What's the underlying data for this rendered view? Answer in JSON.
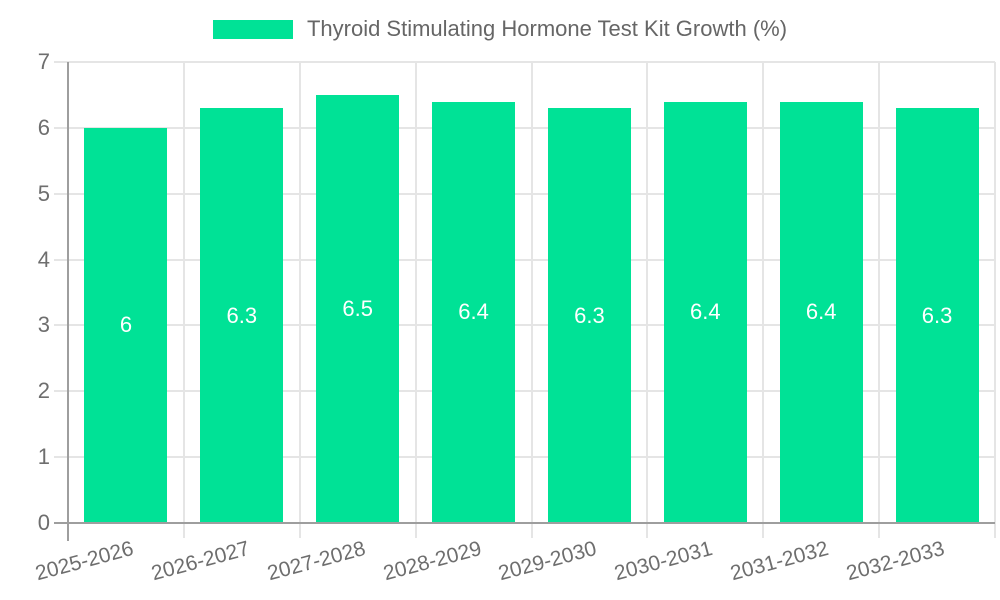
{
  "chart_data": {
    "type": "bar",
    "title": "Thyroid Stimulating Hormone Test Kit Growth (%)",
    "legend": {
      "label": "Thyroid Stimulating Hormone Test Kit Growth (%)",
      "position": "top"
    },
    "categories": [
      "2025-2026",
      "2026-2027",
      "2027-2028",
      "2028-2029",
      "2029-2030",
      "2030-2031",
      "2031-2032",
      "2032-2033"
    ],
    "series": [
      {
        "name": "Thyroid Stimulating Hormone Test Kit Growth (%)",
        "values": [
          6,
          6.3,
          6.5,
          6.4,
          6.3,
          6.4,
          6.4,
          6.3
        ]
      }
    ],
    "value_labels": [
      "6",
      "6.3",
      "6.5",
      "6.4",
      "6.3",
      "6.4",
      "6.4",
      "6.3"
    ],
    "xlabel": "",
    "ylabel": "",
    "ylim": [
      0,
      7
    ],
    "yticks": [
      0,
      1,
      2,
      3,
      4,
      5,
      6,
      7
    ],
    "grid": true,
    "x_label_rotation_deg": -15,
    "colors": {
      "bar": "#00e296",
      "grid": "#e5e5e5",
      "axis": "#9e9e9e",
      "tick_text": "#6e6e6e",
      "legend_text": "#666666",
      "value_text": "#ffffff",
      "background": "#ffffff"
    }
  }
}
